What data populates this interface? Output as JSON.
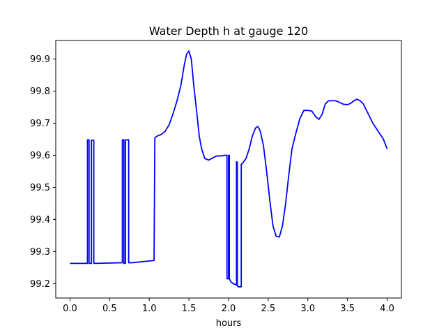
{
  "chart_data": {
    "type": "line",
    "title": "Water Depth h at gauge 120",
    "xlabel": "hours",
    "ylabel": "",
    "xlim": [
      -0.18,
      4.18
    ],
    "ylim": [
      99.155,
      99.958
    ],
    "x_ticks": [
      0.0,
      0.5,
      1.0,
      1.5,
      2.0,
      2.5,
      3.0,
      3.5,
      4.0
    ],
    "x_tick_labels": [
      "0.0",
      "0.5",
      "1.0",
      "1.5",
      "2.0",
      "2.5",
      "3.0",
      "3.5",
      "4.0"
    ],
    "y_ticks": [
      99.2,
      99.3,
      99.4,
      99.5,
      99.6,
      99.7,
      99.8,
      99.9
    ],
    "y_tick_labels": [
      "99.2",
      "99.3",
      "99.4",
      "99.5",
      "99.6",
      "99.7",
      "99.8",
      "99.9"
    ],
    "grid": false,
    "series": [
      {
        "color": "#0000ff",
        "x": [
          0.0,
          0.22,
          0.22,
          0.24,
          0.24,
          0.27,
          0.27,
          0.3,
          0.3,
          0.31,
          0.31,
          0.66,
          0.66,
          0.68,
          0.68,
          0.7,
          0.7,
          0.74,
          0.74,
          0.78,
          0.78,
          1.06,
          1.07,
          1.1,
          1.15,
          1.2,
          1.25,
          1.3,
          1.35,
          1.4,
          1.44,
          1.47,
          1.5,
          1.53,
          1.56,
          1.6,
          1.63,
          1.66,
          1.7,
          1.75,
          1.8,
          1.85,
          1.9,
          1.95,
          1.98,
          1.98,
          2.0,
          2.0,
          2.01,
          2.01,
          2.02,
          2.03,
          2.03,
          2.06,
          2.1,
          2.1,
          2.11,
          2.11,
          2.12,
          2.14,
          2.16,
          2.16,
          2.18,
          2.22,
          2.26,
          2.3,
          2.34,
          2.37,
          2.4,
          2.44,
          2.48,
          2.52,
          2.56,
          2.6,
          2.64,
          2.68,
          2.72,
          2.76,
          2.8,
          2.85,
          2.9,
          2.95,
          3.0,
          3.05,
          3.1,
          3.14,
          3.18,
          3.22,
          3.26,
          3.3,
          3.35,
          3.4,
          3.45,
          3.5,
          3.54,
          3.58,
          3.62,
          3.66,
          3.7,
          3.74,
          3.78,
          3.82,
          3.86,
          3.9,
          3.95,
          4.0
        ],
        "y": [
          99.263,
          99.263,
          99.648,
          99.648,
          99.263,
          99.263,
          99.647,
          99.647,
          99.263,
          99.263,
          99.263,
          99.265,
          99.648,
          99.648,
          99.263,
          99.263,
          99.648,
          99.648,
          99.265,
          99.265,
          99.265,
          99.272,
          99.655,
          99.66,
          99.665,
          99.675,
          99.695,
          99.73,
          99.77,
          99.82,
          99.88,
          99.915,
          99.925,
          99.9,
          99.82,
          99.73,
          99.66,
          99.62,
          99.59,
          99.585,
          99.592,
          99.598,
          99.598,
          99.6,
          99.6,
          99.215,
          99.215,
          99.6,
          99.6,
          99.215,
          99.21,
          99.205,
          99.205,
          99.2,
          99.195,
          99.58,
          99.578,
          99.195,
          99.19,
          99.19,
          99.19,
          99.572,
          99.576,
          99.59,
          99.62,
          99.66,
          99.685,
          99.69,
          99.675,
          99.63,
          99.55,
          99.46,
          99.38,
          99.348,
          99.345,
          99.38,
          99.45,
          99.54,
          99.62,
          99.67,
          99.715,
          99.74,
          99.74,
          99.738,
          99.72,
          99.712,
          99.728,
          99.76,
          99.77,
          99.77,
          99.77,
          99.765,
          99.759,
          99.758,
          99.762,
          99.77,
          99.775,
          99.77,
          99.76,
          99.74,
          99.72,
          99.7,
          99.685,
          99.67,
          99.652,
          99.62
        ]
      }
    ]
  }
}
